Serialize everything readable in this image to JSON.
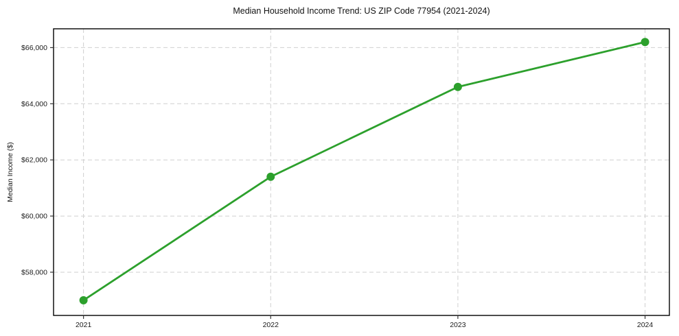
{
  "chart_data": {
    "type": "line",
    "title": "Median Household Income Trend: US ZIP Code 77954 (2021-2024)",
    "xlabel": "",
    "ylabel": "Median Income ($)",
    "x": [
      2021,
      2022,
      2023,
      2024
    ],
    "x_tick_labels": [
      "2021",
      "2022",
      "2023",
      "2024"
    ],
    "series": [
      {
        "name": "Median Household Income",
        "values": [
          57000,
          61400,
          64600,
          66200
        ]
      }
    ],
    "y_tick_values": [
      58000,
      60000,
      62000,
      64000,
      66000
    ],
    "y_tick_labels": [
      "$58,000",
      "$60,000",
      "$62,000",
      "$64,000",
      "$66,000"
    ],
    "xlim": [
      2020.84,
      2024.13
    ],
    "ylim": [
      56460,
      66670
    ],
    "grid": true,
    "legend": "none",
    "colors": {
      "line": "#2ca02c",
      "marker": "#2ca02c",
      "grid": "#cfcfcf",
      "axis_border": "#000000",
      "tick": "#333333",
      "text": "#1a1a1a"
    }
  }
}
